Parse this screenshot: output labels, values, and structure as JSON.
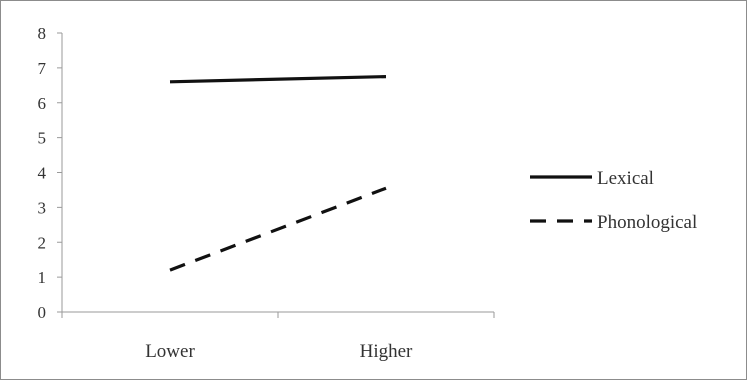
{
  "chart_data": {
    "type": "line",
    "title": "",
    "xlabel": "",
    "ylabel": "",
    "categories": [
      "Lower",
      "Higher"
    ],
    "ylim": [
      0,
      8
    ],
    "yticks": [
      "0",
      "1",
      "2",
      "3",
      "4",
      "5",
      "6",
      "7",
      "8"
    ],
    "grid": false,
    "legend_position": "right",
    "series": [
      {
        "name": "Lexical",
        "values": [
          6.6,
          6.75
        ],
        "style": "solid",
        "color": "#111111"
      },
      {
        "name": "Phonological",
        "values": [
          1.2,
          3.55
        ],
        "style": "dashed",
        "color": "#111111"
      }
    ]
  }
}
